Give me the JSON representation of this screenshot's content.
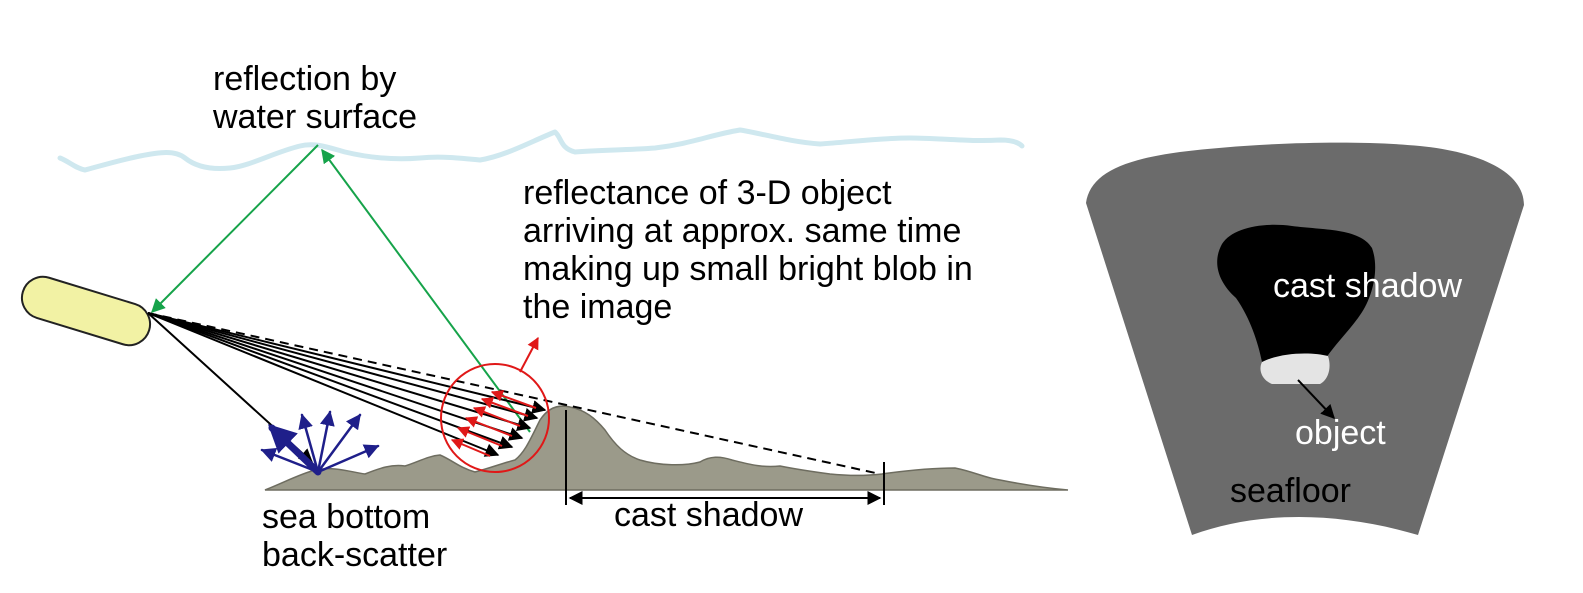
{
  "labels": {
    "water_reflection": [
      "reflection by",
      "water surface"
    ],
    "object_reflectance": [
      "reflectance of 3-D object",
      "arriving at approx. same time",
      "making up small bright blob in",
      "the image"
    ],
    "backscatter": [
      "sea bottom",
      "back-scatter"
    ],
    "cast_shadow": "cast shadow"
  },
  "sonar_image": {
    "cast_shadow": "cast shadow",
    "object": "object",
    "seafloor": "seafloor"
  },
  "colors": {
    "water_line": "#cfe8ef",
    "seabed": "#9b9a8a",
    "towfish": "#f2f2a4",
    "surface_ray": "#16a34a",
    "sonar_ray": "#000000",
    "object_return": "#e01818",
    "backscatter_arrow": "#1f1f8a",
    "highlight_circle": "#e01818",
    "sonar_fan": "#6b6b6b",
    "shadow_blob": "#000000",
    "object_blob": "#e4e4e4"
  }
}
